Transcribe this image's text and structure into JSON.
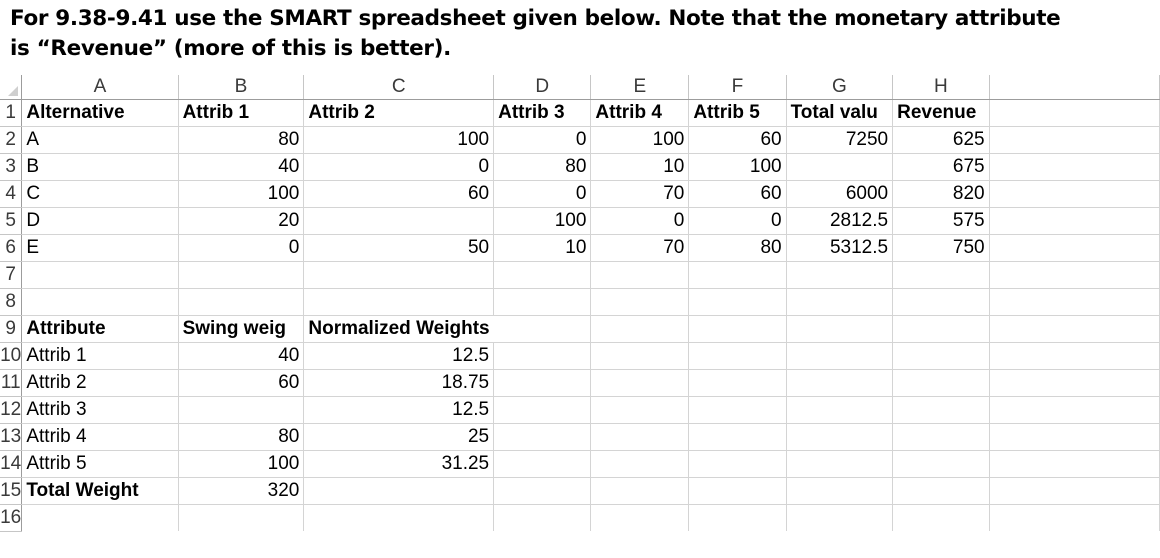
{
  "heading": {
    "line1": "For 9.38-9.41 use the SMART spreadsheet given below. Note that the monetary attribute",
    "line2": "is “Revenue” (more of this is better)."
  },
  "spreadsheet": {
    "columns": [
      "A",
      "B",
      "C",
      "D",
      "E",
      "F",
      "G",
      "H"
    ],
    "rows": [
      {
        "n": "1",
        "cells": [
          "Alternative",
          "Attrib 1",
          "Attrib 2",
          "Attrib 3",
          "Attrib 4",
          "Attrib 5",
          "Total valu",
          "Revenue"
        ]
      },
      {
        "n": "2",
        "cells": [
          "A",
          "80",
          "100",
          "0",
          "100",
          "60",
          "7250",
          "625"
        ]
      },
      {
        "n": "3",
        "cells": [
          "B",
          "40",
          "0",
          "80",
          "10",
          "100",
          "",
          "675"
        ]
      },
      {
        "n": "4",
        "cells": [
          "C",
          "100",
          "60",
          "0",
          "70",
          "60",
          "6000",
          "820"
        ]
      },
      {
        "n": "5",
        "cells": [
          "D",
          "20",
          "",
          "100",
          "0",
          "0",
          "2812.5",
          "575"
        ]
      },
      {
        "n": "6",
        "cells": [
          "E",
          "0",
          "50",
          "10",
          "70",
          "80",
          "5312.5",
          "750"
        ]
      },
      {
        "n": "7",
        "cells": [
          "",
          "",
          "",
          "",
          "",
          "",
          "",
          ""
        ]
      },
      {
        "n": "8",
        "cells": [
          "",
          "",
          "",
          "",
          "",
          "",
          "",
          ""
        ]
      },
      {
        "n": "9",
        "cells": [
          "Attribute",
          "Swing weig",
          "Normalized Weights",
          "",
          "",
          "",
          "",
          ""
        ]
      },
      {
        "n": "10",
        "cells": [
          "Attrib 1",
          "40",
          "12.5",
          "",
          "",
          "",
          "",
          ""
        ]
      },
      {
        "n": "11",
        "cells": [
          "Attrib 2",
          "60",
          "18.75",
          "",
          "",
          "",
          "",
          ""
        ]
      },
      {
        "n": "12",
        "cells": [
          "Attrib 3",
          "",
          "12.5",
          "",
          "",
          "",
          "",
          ""
        ]
      },
      {
        "n": "13",
        "cells": [
          "Attrib 4",
          "80",
          "25",
          "",
          "",
          "",
          "",
          ""
        ]
      },
      {
        "n": "14",
        "cells": [
          "Attrib 5",
          "100",
          "31.25",
          "",
          "",
          "",
          "",
          ""
        ]
      },
      {
        "n": "15",
        "cells": [
          "Total Weight",
          "320",
          "",
          "",
          "",
          "",
          "",
          ""
        ]
      },
      {
        "n": "16",
        "cells": [
          "",
          "",
          "",
          "",
          "",
          "",
          "",
          ""
        ]
      }
    ]
  }
}
